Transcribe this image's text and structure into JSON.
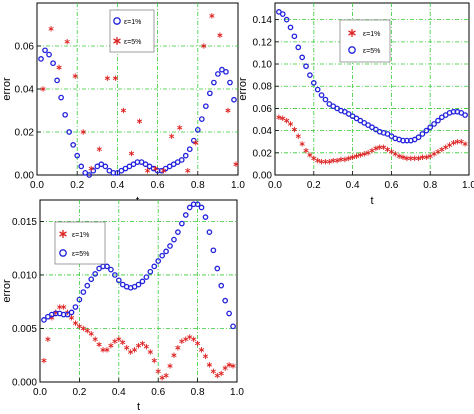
{
  "chart_data": [
    {
      "type": "scatter",
      "xlabel": "t",
      "ylabel": "error",
      "xlim": [
        0.0,
        1.0
      ],
      "ylim": [
        0.0,
        0.08
      ],
      "xticks": [
        "0.0",
        "0.2",
        "0.4",
        "0.6",
        "0.8",
        "1.0"
      ],
      "xtick_values": [
        0.0,
        0.2,
        0.4,
        0.6,
        0.8,
        1.0
      ],
      "yticks": [
        "0.00",
        "0.02",
        "0.04",
        "0.06"
      ],
      "ytick_values": [
        0.0,
        0.02,
        0.04,
        0.06
      ],
      "grid": true,
      "legend_position": "top-center",
      "series": [
        {
          "name": "ε=1%",
          "marker": "circle",
          "color": "#2222dd",
          "x": [
            0.02,
            0.04,
            0.06,
            0.08,
            0.1,
            0.12,
            0.14,
            0.16,
            0.18,
            0.2,
            0.22,
            0.24,
            0.26,
            0.28,
            0.3,
            0.32,
            0.34,
            0.36,
            0.38,
            0.4,
            0.42,
            0.44,
            0.46,
            0.48,
            0.5,
            0.52,
            0.54,
            0.56,
            0.58,
            0.6,
            0.62,
            0.64,
            0.66,
            0.68,
            0.7,
            0.72,
            0.74,
            0.76,
            0.78,
            0.8,
            0.82,
            0.84,
            0.86,
            0.88,
            0.9,
            0.92,
            0.94,
            0.96,
            0.98
          ],
          "y": [
            0.054,
            0.058,
            0.056,
            0.052,
            0.044,
            0.036,
            0.028,
            0.02,
            0.014,
            0.009,
            0.004,
            0.001,
            0.0,
            0.002,
            0.004,
            0.005,
            0.004,
            0.002,
            0.001,
            0.001,
            0.002,
            0.003,
            0.004,
            0.005,
            0.006,
            0.006,
            0.005,
            0.004,
            0.003,
            0.002,
            0.002,
            0.003,
            0.004,
            0.005,
            0.006,
            0.007,
            0.009,
            0.012,
            0.016,
            0.021,
            0.026,
            0.032,
            0.038,
            0.043,
            0.047,
            0.049,
            0.048,
            0.043,
            0.035
          ]
        },
        {
          "name": "ε=5%",
          "marker": "star",
          "color": "#dd2222",
          "x": [
            0.03,
            0.07,
            0.11,
            0.15,
            0.19,
            0.23,
            0.27,
            0.31,
            0.35,
            0.39,
            0.43,
            0.47,
            0.51,
            0.55,
            0.59,
            0.63,
            0.67,
            0.71,
            0.75,
            0.79,
            0.83,
            0.87,
            0.91,
            0.95,
            0.99
          ],
          "y": [
            0.04,
            0.068,
            0.05,
            0.062,
            0.046,
            0.02,
            0.003,
            0.012,
            0.045,
            0.045,
            0.03,
            0.01,
            0.025,
            0.002,
            0.003,
            0.002,
            0.018,
            0.022,
            0.002,
            0.015,
            0.06,
            0.074,
            0.065,
            0.03,
            0.005
          ]
        }
      ]
    },
    {
      "type": "scatter",
      "xlabel": "t",
      "ylabel": "error",
      "xlim": [
        0.0,
        1.0
      ],
      "ylim": [
        0.0,
        0.155
      ],
      "xticks": [
        "0.0",
        "0.2",
        "0.4",
        "0.6",
        "0.8",
        "1.0"
      ],
      "xtick_values": [
        0.0,
        0.2,
        0.4,
        0.6,
        0.8,
        1.0
      ],
      "yticks": [
        "0.00",
        "0.02",
        "0.04",
        "0.06",
        "0.08",
        "0.10",
        "0.12",
        "0.14"
      ],
      "ytick_values": [
        0.0,
        0.02,
        0.04,
        0.06,
        0.08,
        0.1,
        0.12,
        0.14
      ],
      "grid": true,
      "legend_position": "top-center",
      "series": [
        {
          "name": "ε=1%",
          "marker": "star",
          "color": "#dd2222",
          "x": [
            0.02,
            0.04,
            0.06,
            0.08,
            0.1,
            0.12,
            0.14,
            0.16,
            0.18,
            0.2,
            0.22,
            0.24,
            0.26,
            0.28,
            0.3,
            0.32,
            0.34,
            0.36,
            0.38,
            0.4,
            0.42,
            0.44,
            0.46,
            0.48,
            0.5,
            0.52,
            0.54,
            0.56,
            0.58,
            0.6,
            0.62,
            0.64,
            0.66,
            0.68,
            0.7,
            0.72,
            0.74,
            0.76,
            0.78,
            0.8,
            0.82,
            0.84,
            0.86,
            0.88,
            0.9,
            0.92,
            0.94,
            0.96,
            0.98
          ],
          "y": [
            0.052,
            0.051,
            0.049,
            0.046,
            0.041,
            0.035,
            0.028,
            0.022,
            0.018,
            0.015,
            0.013,
            0.012,
            0.012,
            0.012,
            0.013,
            0.013,
            0.014,
            0.014,
            0.015,
            0.016,
            0.017,
            0.018,
            0.019,
            0.02,
            0.022,
            0.024,
            0.025,
            0.025,
            0.023,
            0.021,
            0.019,
            0.017,
            0.016,
            0.015,
            0.015,
            0.015,
            0.015,
            0.016,
            0.016,
            0.017,
            0.019,
            0.021,
            0.023,
            0.025,
            0.027,
            0.029,
            0.03,
            0.03,
            0.028
          ]
        },
        {
          "name": "ε=5%",
          "marker": "circle",
          "color": "#2222dd",
          "x": [
            0.02,
            0.04,
            0.06,
            0.08,
            0.1,
            0.12,
            0.14,
            0.16,
            0.18,
            0.2,
            0.22,
            0.24,
            0.26,
            0.28,
            0.3,
            0.32,
            0.34,
            0.36,
            0.38,
            0.4,
            0.42,
            0.44,
            0.46,
            0.48,
            0.5,
            0.52,
            0.54,
            0.56,
            0.58,
            0.6,
            0.62,
            0.64,
            0.66,
            0.68,
            0.7,
            0.72,
            0.74,
            0.76,
            0.78,
            0.8,
            0.82,
            0.84,
            0.86,
            0.88,
            0.9,
            0.92,
            0.94,
            0.96,
            0.98
          ],
          "y": [
            0.147,
            0.145,
            0.14,
            0.133,
            0.125,
            0.115,
            0.106,
            0.098,
            0.09,
            0.083,
            0.077,
            0.072,
            0.068,
            0.064,
            0.062,
            0.06,
            0.058,
            0.057,
            0.055,
            0.053,
            0.051,
            0.049,
            0.047,
            0.045,
            0.043,
            0.041,
            0.039,
            0.038,
            0.037,
            0.035,
            0.033,
            0.032,
            0.031,
            0.031,
            0.031,
            0.032,
            0.034,
            0.037,
            0.04,
            0.043,
            0.046,
            0.049,
            0.052,
            0.054,
            0.056,
            0.057,
            0.057,
            0.056,
            0.054
          ]
        }
      ]
    },
    {
      "type": "scatter",
      "xlabel": "t",
      "ylabel": "error",
      "xlim": [
        0.0,
        1.0
      ],
      "ylim": [
        0.0,
        0.017
      ],
      "xticks": [
        "0.0",
        "0.2",
        "0.4",
        "0.6",
        "0.8",
        "1.0"
      ],
      "xtick_values": [
        0.0,
        0.2,
        0.4,
        0.6,
        0.8,
        1.0
      ],
      "yticks": [
        "0.000",
        "0.005",
        "0.010",
        "0.015"
      ],
      "ytick_values": [
        0.0,
        0.005,
        0.01,
        0.015
      ],
      "grid": true,
      "legend_position": "top-left",
      "series": [
        {
          "name": "ε=1%",
          "marker": "star",
          "color": "#dd2222",
          "x": [
            0.02,
            0.04,
            0.06,
            0.08,
            0.1,
            0.12,
            0.14,
            0.16,
            0.18,
            0.2,
            0.22,
            0.24,
            0.26,
            0.28,
            0.3,
            0.32,
            0.34,
            0.36,
            0.38,
            0.4,
            0.42,
            0.44,
            0.46,
            0.48,
            0.5,
            0.52,
            0.54,
            0.56,
            0.58,
            0.6,
            0.62,
            0.64,
            0.66,
            0.68,
            0.7,
            0.72,
            0.74,
            0.76,
            0.78,
            0.8,
            0.82,
            0.84,
            0.86,
            0.88,
            0.9,
            0.92,
            0.94,
            0.96,
            0.98
          ],
          "y": [
            0.002,
            0.004,
            0.006,
            0.0065,
            0.007,
            0.007,
            0.0065,
            0.006,
            0.0055,
            0.0052,
            0.005,
            0.0048,
            0.0045,
            0.004,
            0.0035,
            0.003,
            0.003,
            0.0034,
            0.0038,
            0.004,
            0.0037,
            0.0032,
            0.0028,
            0.003,
            0.0034,
            0.0036,
            0.0033,
            0.0028,
            0.002,
            0.001,
            0.0004,
            0.0006,
            0.0015,
            0.0025,
            0.0032,
            0.0038,
            0.004,
            0.0042,
            0.004,
            0.0036,
            0.003,
            0.0024,
            0.0016,
            0.001,
            0.0006,
            0.0008,
            0.0013,
            0.0016,
            0.0015
          ]
        },
        {
          "name": "ε=5%",
          "marker": "circle",
          "color": "#2222dd",
          "x": [
            0.02,
            0.04,
            0.06,
            0.08,
            0.1,
            0.12,
            0.14,
            0.16,
            0.18,
            0.2,
            0.22,
            0.24,
            0.26,
            0.28,
            0.3,
            0.32,
            0.34,
            0.36,
            0.38,
            0.4,
            0.42,
            0.44,
            0.46,
            0.48,
            0.5,
            0.52,
            0.54,
            0.56,
            0.58,
            0.6,
            0.62,
            0.64,
            0.66,
            0.68,
            0.7,
            0.72,
            0.74,
            0.76,
            0.78,
            0.8,
            0.82,
            0.84,
            0.86,
            0.88,
            0.9,
            0.92,
            0.94,
            0.96,
            0.98
          ],
          "y": [
            0.0058,
            0.0061,
            0.0063,
            0.0064,
            0.0064,
            0.0063,
            0.0063,
            0.0065,
            0.007,
            0.0077,
            0.0084,
            0.009,
            0.0096,
            0.0101,
            0.0106,
            0.0108,
            0.0108,
            0.0105,
            0.01,
            0.0095,
            0.0091,
            0.0089,
            0.0088,
            0.0089,
            0.0091,
            0.0094,
            0.0098,
            0.0103,
            0.0108,
            0.0113,
            0.0118,
            0.0122,
            0.0127,
            0.0133,
            0.014,
            0.0148,
            0.0156,
            0.0163,
            0.0166,
            0.0166,
            0.0163,
            0.0154,
            0.014,
            0.0123,
            0.0106,
            0.009,
            0.0076,
            0.0064,
            0.0052
          ]
        }
      ]
    }
  ]
}
